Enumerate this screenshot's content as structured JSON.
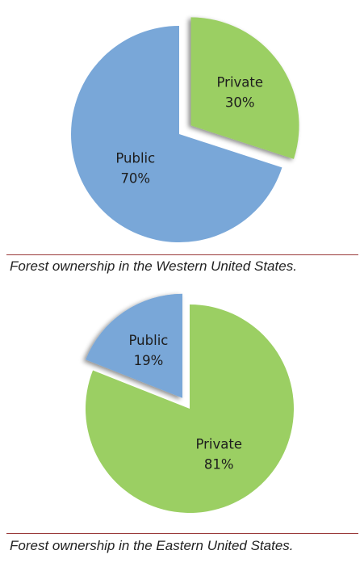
{
  "chart_data": [
    {
      "type": "pie",
      "slices": [
        {
          "label": "Private",
          "value": 30,
          "value_label": "30%",
          "color": "#9bcf63"
        },
        {
          "label": "Public",
          "value": 70,
          "value_label": "70%",
          "color": "#79a7d8"
        }
      ],
      "caption": "Forest ownership in the Western United States."
    },
    {
      "type": "pie",
      "slices": [
        {
          "label": "Public",
          "value": 19,
          "value_label": "19%",
          "color": "#79a7d8"
        },
        {
          "label": "Private",
          "value": 81,
          "value_label": "81%",
          "color": "#9bcf63"
        }
      ],
      "caption": "Forest ownership in the Eastern United States."
    }
  ]
}
